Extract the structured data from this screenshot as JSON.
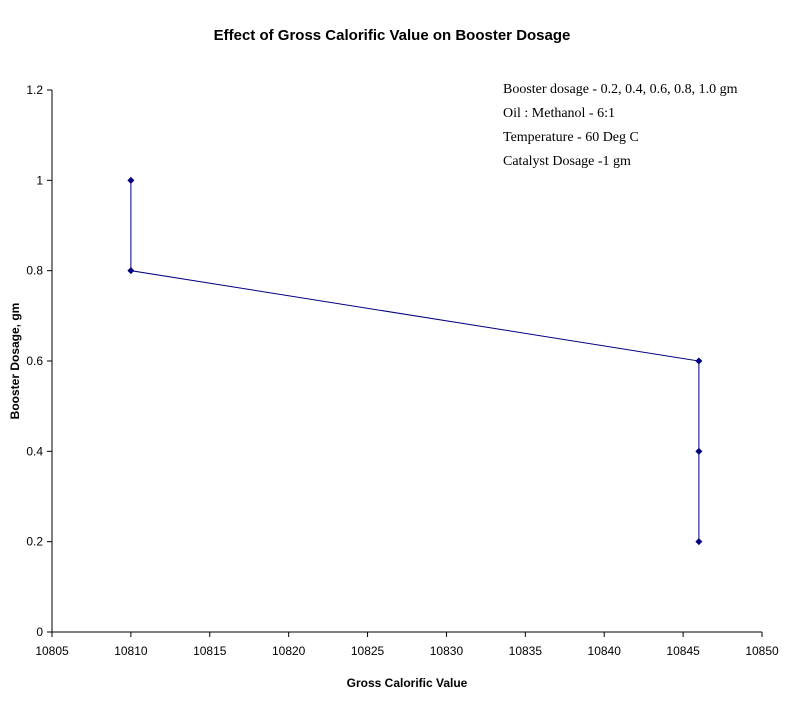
{
  "chart_data": {
    "type": "line",
    "title": "Effect of Gross Calorific Value on Booster Dosage",
    "xlabel": "Gross Calorific Value",
    "ylabel": "Booster Dosage, gm",
    "xlim": [
      10805,
      10850
    ],
    "ylim": [
      0,
      1.2
    ],
    "x_ticks": [
      "10805",
      "10810",
      "10815",
      "10820",
      "10825",
      "10830",
      "10835",
      "10840",
      "10845",
      "10850"
    ],
    "y_ticks": [
      "0",
      "0.2",
      "0.4",
      "0.6",
      "0.8",
      "1",
      "1.2"
    ],
    "grid": false,
    "series": [
      {
        "x": [
          10846,
          10846,
          10846,
          10810,
          10810
        ],
        "y": [
          0.2,
          0.4,
          0.6,
          0.8,
          1.0
        ],
        "color": "#000080",
        "marker": "diamond"
      }
    ],
    "annotations": [
      "Booster dosage - 0.2, 0.4, 0.6, 0.8, 1.0 gm",
      "Oil : Methanol - 6:1",
      "Temperature - 60 Deg C",
      "Catalyst Dosage -1 gm"
    ]
  }
}
